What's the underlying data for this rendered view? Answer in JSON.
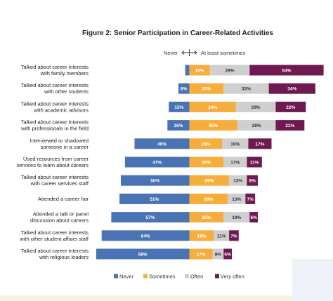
{
  "chart_data": {
    "type": "bar",
    "title": "Figure 2: Senior Participation in Career-Related Activities",
    "scale_label_left": "Never",
    "scale_label_right": "At least sometimes",
    "categories": [
      "Talked about career interests with family members",
      "Talked about career interests with other students",
      "Talked about career interests with academic advisors",
      "Talked about career interests with professionals in the field",
      "Interviewed or shadowed someone in a career",
      "Used resources from career services to learn about careers",
      "Talked about career interests with career services staff",
      "Attended a career fair",
      "Attended a talk or panel discussion about careers",
      "Talked about career interests with other student affairs staff",
      "Talked about career interests with religious leaders"
    ],
    "category_lines": [
      [
        "Talked about career interests",
        "with family members"
      ],
      [
        "Talked about career interests",
        "with other students"
      ],
      [
        "Talked about career interests",
        "with academic advisors"
      ],
      [
        "Talked about career interests",
        "with professionals in the field"
      ],
      [
        "Interviewed or shadowed",
        "someone in a career"
      ],
      [
        "Used resources from career",
        "services to learn about careers"
      ],
      [
        "Talked about career interests",
        "with career services staff"
      ],
      [
        "Attended a career fair"
      ],
      [
        "Attended a talk or panel",
        "discussion about careers"
      ],
      [
        "Talked about career interests",
        "with other student affairs staff"
      ],
      [
        "Talked about career interests",
        "with religious leaders"
      ]
    ],
    "series": [
      {
        "name": "Never",
        "color": "#4a73b4",
        "values": [
          3,
          8,
          15,
          16,
          40,
          47,
          50,
          51,
          57,
          64,
          68
        ]
      },
      {
        "name": "Sometimes",
        "color": "#f5ad3c",
        "values": [
          15,
          25,
          34,
          35,
          24,
          25,
          29,
          28,
          25,
          18,
          17
        ]
      },
      {
        "name": "Often",
        "color": "#cfcfcf",
        "values": [
          29,
          33,
          29,
          28,
          19,
          17,
          13,
          13,
          19,
          11,
          8
        ]
      },
      {
        "name": "Very often",
        "color": "#6e1a50",
        "values": [
          54,
          34,
          22,
          21,
          17,
          11,
          8,
          7,
          6,
          7,
          6
        ]
      }
    ],
    "value_labels": [
      [
        "",
        "15%",
        "29%",
        "54%"
      ],
      [
        "8%",
        "25%",
        "33%",
        "34%"
      ],
      [
        "15%",
        "34%",
        "29%",
        "22%"
      ],
      [
        "16%",
        "35%",
        "28%",
        "21%"
      ],
      [
        "40%",
        "24%",
        "19%",
        "17%"
      ],
      [
        "47%",
        "25%",
        "17%",
        "11%"
      ],
      [
        "50%",
        "29%",
        "13%",
        "8%"
      ],
      [
        "51%",
        "28%",
        "13%",
        "7%"
      ],
      [
        "57%",
        "25%",
        "19%",
        "6%"
      ],
      [
        "64%",
        "18%",
        "11%",
        "7%"
      ],
      [
        "68%",
        "17%",
        "8%",
        "6%"
      ]
    ],
    "legend_position": "bottom",
    "grid": false
  }
}
